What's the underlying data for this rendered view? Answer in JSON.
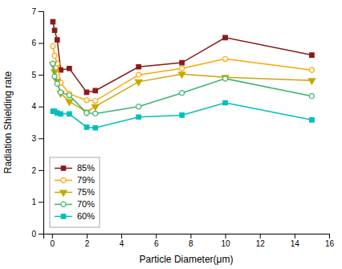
{
  "chart_data": {
    "type": "line",
    "xlabel": "Particle Diameter(μm)",
    "ylabel": "Radiation Shielding rate",
    "x": [
      0.05,
      0.15,
      0.3,
      0.5,
      1.0,
      2.0,
      2.5,
      5.0,
      7.5,
      10.0,
      15.0
    ],
    "series": [
      {
        "name": "85%",
        "color": "#8B1A1A",
        "marker": "square",
        "values": [
          6.67,
          6.4,
          6.1,
          5.15,
          5.2,
          4.45,
          4.5,
          5.25,
          5.38,
          6.17,
          5.62
        ]
      },
      {
        "name": "79%",
        "color": "#FFA500",
        "marker": "circle-open",
        "values": [
          5.9,
          5.6,
          5.35,
          4.75,
          4.4,
          4.2,
          4.18,
          5.0,
          5.2,
          5.5,
          5.15
        ]
      },
      {
        "name": "75%",
        "color": "#C8A800",
        "marker": "triangle-down",
        "values": [
          5.33,
          5.1,
          4.8,
          4.42,
          4.16,
          3.83,
          4.0,
          4.78,
          5.02,
          4.92,
          4.82
        ]
      },
      {
        "name": "70%",
        "color": "#3CB371",
        "marker": "circle-open",
        "values": [
          5.35,
          4.95,
          4.72,
          4.45,
          4.35,
          3.8,
          3.78,
          4.0,
          4.43,
          4.88,
          4.33
        ]
      },
      {
        "name": "60%",
        "color": "#00BFBF",
        "marker": "square",
        "values": [
          3.85,
          3.85,
          3.8,
          3.77,
          3.77,
          3.35,
          3.33,
          3.67,
          3.73,
          4.12,
          3.58
        ]
      }
    ],
    "xlim": [
      -0.5,
      16
    ],
    "ylim": [
      0,
      7
    ],
    "xticks": [
      0,
      2,
      4,
      6,
      8,
      10,
      12,
      14,
      16
    ],
    "yticks": [
      0,
      1,
      2,
      3,
      4,
      5,
      6,
      7
    ],
    "grid": false,
    "legend": "lower left"
  }
}
